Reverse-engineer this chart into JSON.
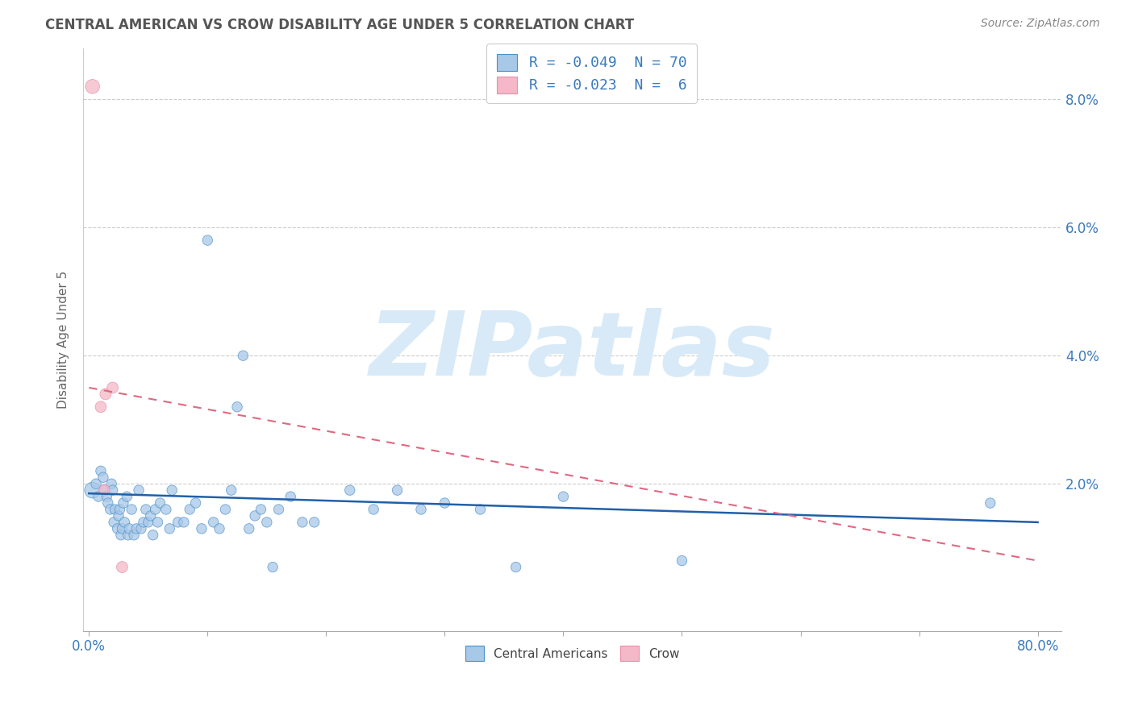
{
  "title": "CENTRAL AMERICAN VS CROW DISABILITY AGE UNDER 5 CORRELATION CHART",
  "source": "Source: ZipAtlas.com",
  "ylabel": "Disability Age Under 5",
  "xlim": [
    -0.005,
    0.82
  ],
  "ylim": [
    -0.003,
    0.088
  ],
  "yticks": [
    0.02,
    0.04,
    0.06,
    0.08
  ],
  "ytick_labels": [
    "2.0%",
    "4.0%",
    "6.0%",
    "8.0%"
  ],
  "xticks": [
    0.0,
    0.1,
    0.2,
    0.3,
    0.4,
    0.5,
    0.6,
    0.7,
    0.8
  ],
  "xtick_labels": [
    "0.0%",
    "",
    "",
    "",
    "",
    "",
    "",
    "",
    "80.0%"
  ],
  "blue_color": "#a8c8e8",
  "pink_color": "#f4b8c8",
  "blue_edge_color": "#4a90c8",
  "pink_edge_color": "#e890a8",
  "blue_line_color": "#2060a8",
  "pink_line_color": "#e06880",
  "axis_color": "#3a7abf",
  "title_color": "#555555",
  "watermark": "ZIPatlas",
  "watermark_color": "#d8eaf8",
  "R_blue": "-0.049",
  "N_blue": "70",
  "R_pink": "-0.023",
  "N_pink": "6",
  "blue_points": [
    [
      0.003,
      0.019
    ],
    [
      0.006,
      0.02
    ],
    [
      0.008,
      0.018
    ],
    [
      0.01,
      0.022
    ],
    [
      0.012,
      0.021
    ],
    [
      0.013,
      0.019
    ],
    [
      0.015,
      0.018
    ],
    [
      0.016,
      0.017
    ],
    [
      0.018,
      0.016
    ],
    [
      0.019,
      0.02
    ],
    [
      0.02,
      0.019
    ],
    [
      0.021,
      0.014
    ],
    [
      0.022,
      0.016
    ],
    [
      0.024,
      0.013
    ],
    [
      0.025,
      0.015
    ],
    [
      0.026,
      0.016
    ],
    [
      0.027,
      0.012
    ],
    [
      0.028,
      0.013
    ],
    [
      0.029,
      0.017
    ],
    [
      0.03,
      0.014
    ],
    [
      0.032,
      0.018
    ],
    [
      0.033,
      0.012
    ],
    [
      0.034,
      0.013
    ],
    [
      0.036,
      0.016
    ],
    [
      0.038,
      0.012
    ],
    [
      0.04,
      0.013
    ],
    [
      0.042,
      0.019
    ],
    [
      0.044,
      0.013
    ],
    [
      0.046,
      0.014
    ],
    [
      0.048,
      0.016
    ],
    [
      0.05,
      0.014
    ],
    [
      0.052,
      0.015
    ],
    [
      0.054,
      0.012
    ],
    [
      0.056,
      0.016
    ],
    [
      0.058,
      0.014
    ],
    [
      0.06,
      0.017
    ],
    [
      0.065,
      0.016
    ],
    [
      0.068,
      0.013
    ],
    [
      0.07,
      0.019
    ],
    [
      0.075,
      0.014
    ],
    [
      0.08,
      0.014
    ],
    [
      0.085,
      0.016
    ],
    [
      0.09,
      0.017
    ],
    [
      0.095,
      0.013
    ],
    [
      0.1,
      0.058
    ],
    [
      0.105,
      0.014
    ],
    [
      0.11,
      0.013
    ],
    [
      0.115,
      0.016
    ],
    [
      0.12,
      0.019
    ],
    [
      0.125,
      0.032
    ],
    [
      0.13,
      0.04
    ],
    [
      0.135,
      0.013
    ],
    [
      0.14,
      0.015
    ],
    [
      0.145,
      0.016
    ],
    [
      0.15,
      0.014
    ],
    [
      0.155,
      0.007
    ],
    [
      0.16,
      0.016
    ],
    [
      0.17,
      0.018
    ],
    [
      0.18,
      0.014
    ],
    [
      0.19,
      0.014
    ],
    [
      0.22,
      0.019
    ],
    [
      0.24,
      0.016
    ],
    [
      0.26,
      0.019
    ],
    [
      0.28,
      0.016
    ],
    [
      0.3,
      0.017
    ],
    [
      0.33,
      0.016
    ],
    [
      0.36,
      0.007
    ],
    [
      0.4,
      0.018
    ],
    [
      0.5,
      0.008
    ],
    [
      0.76,
      0.017
    ]
  ],
  "pink_points": [
    [
      0.003,
      0.082
    ],
    [
      0.01,
      0.032
    ],
    [
      0.014,
      0.034
    ],
    [
      0.02,
      0.035
    ],
    [
      0.013,
      0.019
    ],
    [
      0.028,
      0.007
    ]
  ],
  "blue_sizes": [
    200,
    80,
    80,
    80,
    80,
    80,
    80,
    80,
    80,
    80,
    80,
    80,
    80,
    80,
    80,
    80,
    80,
    80,
    80,
    80,
    80,
    80,
    80,
    80,
    80,
    80,
    80,
    80,
    80,
    80,
    80,
    80,
    80,
    80,
    80,
    80,
    80,
    80,
    80,
    80,
    80,
    80,
    80,
    80,
    80,
    80,
    80,
    80,
    80,
    80,
    80,
    80,
    80,
    80,
    80,
    80,
    80,
    80,
    80,
    80,
    80,
    80,
    80,
    80,
    80,
    80,
    80,
    80,
    80,
    80
  ],
  "pink_sizes": [
    160,
    100,
    100,
    100,
    100,
    100
  ],
  "blue_trend_x": [
    0.0,
    0.8
  ],
  "blue_trend_y": [
    0.0185,
    0.014
  ],
  "pink_trend_x": [
    0.0,
    0.8
  ],
  "pink_trend_y": [
    0.035,
    0.008
  ],
  "legend_labels_bottom": [
    "Central Americans",
    "Crow"
  ],
  "legend_corr_line1": "R = -0.049  N = 70",
  "legend_corr_line2": "R = -0.023  N =  6"
}
